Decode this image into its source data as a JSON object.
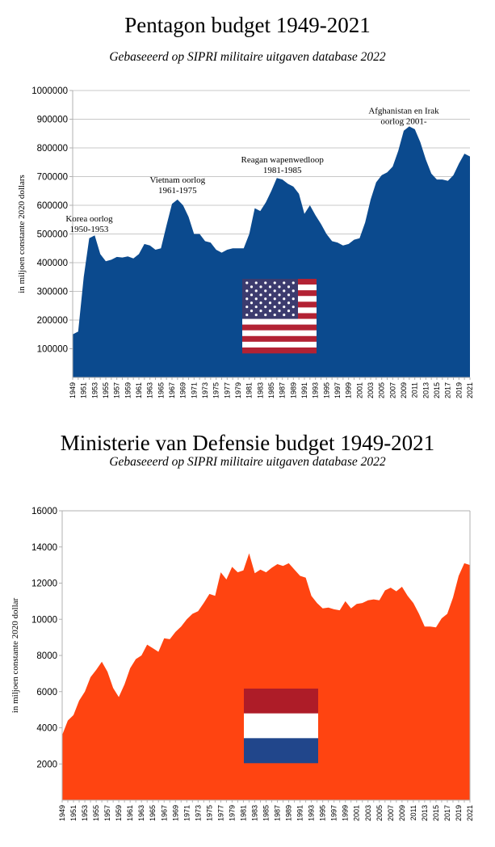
{
  "chart_data": [
    {
      "type": "area",
      "title": "Pentagon budget 1949-2021",
      "subtitle": "Gebaseeerd op SIPRI militaire uitgaven database 2022",
      "xlabel": "",
      "ylabel": "in miljoen constante 2020 dollars",
      "ylim": [
        0,
        1000000
      ],
      "yticks": [
        "100000",
        "200000",
        "300000",
        "400000",
        "500000",
        "600000",
        "700000",
        "800000",
        "900000",
        "1000000"
      ],
      "x": [
        1949,
        1950,
        1951,
        1952,
        1953,
        1954,
        1955,
        1956,
        1957,
        1958,
        1959,
        1960,
        1961,
        1962,
        1963,
        1964,
        1965,
        1966,
        1967,
        1968,
        1969,
        1970,
        1971,
        1972,
        1973,
        1974,
        1975,
        1976,
        1977,
        1978,
        1979,
        1980,
        1981,
        1982,
        1983,
        1984,
        1985,
        1986,
        1987,
        1988,
        1989,
        1990,
        1991,
        1992,
        1993,
        1994,
        1995,
        1996,
        1997,
        1998,
        1999,
        2000,
        2001,
        2002,
        2003,
        2004,
        2005,
        2006,
        2007,
        2008,
        2009,
        2010,
        2011,
        2012,
        2013,
        2014,
        2015,
        2016,
        2017,
        2018,
        2019,
        2020,
        2021
      ],
      "values": [
        150000,
        160000,
        350000,
        485000,
        495000,
        430000,
        405000,
        410000,
        420000,
        418000,
        422000,
        415000,
        430000,
        465000,
        460000,
        445000,
        450000,
        530000,
        605000,
        620000,
        600000,
        560000,
        500000,
        500000,
        475000,
        470000,
        445000,
        435000,
        445000,
        450000,
        450000,
        450000,
        500000,
        590000,
        580000,
        610000,
        650000,
        695000,
        690000,
        675000,
        665000,
        640000,
        570000,
        600000,
        565000,
        535000,
        500000,
        475000,
        470000,
        460000,
        465000,
        480000,
        485000,
        540000,
        620000,
        680000,
        705000,
        715000,
        735000,
        790000,
        860000,
        875000,
        865000,
        820000,
        760000,
        710000,
        690000,
        690000,
        685000,
        705000,
        745000,
        780000,
        770000
      ],
      "series_color": "#0b4a8e",
      "annotations": [
        {
          "year": 1952,
          "lines": [
            "Korea oorlog",
            "1950-1953"
          ]
        },
        {
          "year": 1968,
          "lines": [
            "Vietnam oorlog",
            "1961-1975"
          ]
        },
        {
          "year": 1987,
          "lines": [
            "Reagan wapenwedloop",
            "1981-1985"
          ]
        },
        {
          "year": 2009,
          "lines": [
            "Afghanistan en Irak",
            "oorlog 2001-"
          ]
        }
      ],
      "flag": "flag-of-the-united-states"
    },
    {
      "type": "area",
      "title": "Ministerie van Defensie budget 1949-2021",
      "subtitle": "Gebaseeerd op SIPRI militaire uitgaven database 2022",
      "xlabel": "",
      "ylabel": "in miljoen constante 2020 dollar",
      "ylim": [
        0,
        16000
      ],
      "yticks": [
        "2000",
        "4000",
        "6000",
        "8000",
        "10000",
        "12000",
        "14000",
        "16000"
      ],
      "x": [
        1949,
        1950,
        1951,
        1952,
        1953,
        1954,
        1955,
        1956,
        1957,
        1958,
        1959,
        1960,
        1961,
        1962,
        1963,
        1964,
        1965,
        1966,
        1967,
        1968,
        1969,
        1970,
        1971,
        1972,
        1973,
        1974,
        1975,
        1976,
        1977,
        1978,
        1979,
        1980,
        1981,
        1982,
        1983,
        1984,
        1985,
        1986,
        1987,
        1988,
        1989,
        1990,
        1991,
        1992,
        1993,
        1994,
        1995,
        1996,
        1997,
        1998,
        1999,
        2000,
        2001,
        2002,
        2003,
        2004,
        2005,
        2006,
        2007,
        2008,
        2009,
        2010,
        2011,
        2012,
        2013,
        2014,
        2015,
        2016,
        2017,
        2018,
        2019,
        2020,
        2021
      ],
      "values": [
        3600,
        4400,
        4700,
        5500,
        6000,
        6800,
        7200,
        7650,
        7100,
        6200,
        5700,
        6400,
        7300,
        7800,
        8000,
        8600,
        8400,
        8200,
        8950,
        8900,
        9300,
        9600,
        10000,
        10300,
        10450,
        10900,
        11400,
        11300,
        12600,
        12200,
        12900,
        12600,
        12700,
        13650,
        12550,
        12750,
        12600,
        12850,
        13050,
        12950,
        13100,
        12750,
        12400,
        12300,
        11300,
        10900,
        10600,
        10650,
        10550,
        10500,
        11000,
        10600,
        10850,
        10900,
        11050,
        11100,
        11050,
        11600,
        11750,
        11550,
        11800,
        11300,
        10900,
        10300,
        9600,
        9600,
        9550,
        10050,
        10300,
        11200,
        12400,
        13100,
        13000
      ],
      "series_color": "#ff4411",
      "flag": "flag-of-the-netherlands"
    }
  ]
}
